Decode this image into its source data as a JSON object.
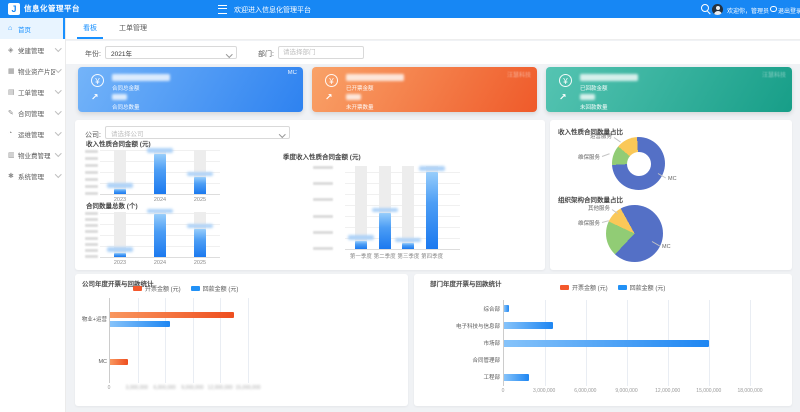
{
  "header": {
    "logo_letter": "J",
    "brand": "信息化管理平台",
    "welcome": "欢迎进入信息化管理平台",
    "greeting": "欢迎你，管理员",
    "logout": "退出登录"
  },
  "sidebar": {
    "items": [
      {
        "label": "首页",
        "icon": "home-icon",
        "active": true,
        "expandable": false
      },
      {
        "label": "党建管理",
        "icon": "flag-icon",
        "active": false,
        "expandable": true
      },
      {
        "label": "物业资产片区管理",
        "icon": "building-icon",
        "active": false,
        "expandable": true
      },
      {
        "label": "工单管理",
        "icon": "list-icon",
        "active": false,
        "expandable": true
      },
      {
        "label": "合同管理",
        "icon": "file-icon",
        "active": false,
        "expandable": true
      },
      {
        "label": "运维管理",
        "icon": "gear-icon",
        "active": false,
        "expandable": true
      },
      {
        "label": "物业费管理",
        "icon": "money-icon",
        "active": false,
        "expandable": true
      },
      {
        "label": "系统管理",
        "icon": "settings-icon",
        "active": false,
        "expandable": true
      }
    ]
  },
  "tabs": [
    {
      "label": "看板",
      "active": true
    },
    {
      "label": "工单管理",
      "active": false
    }
  ],
  "filters": {
    "year_label": "年份:",
    "year_value": "2021年",
    "dept_label": "部门:",
    "dept_placeholder": "请选择部门",
    "company_label": "公司:",
    "company_placeholder": "请选择公司"
  },
  "cards": [
    {
      "theme": "blue",
      "watermark": "MC",
      "rows": [
        {
          "label": "合同总金额",
          "value_redacted": true
        },
        {
          "label": "合同总数量",
          "value_redacted": true
        }
      ]
    },
    {
      "theme": "orange",
      "watermark": "汪慧科技",
      "rows": [
        {
          "label": "已开票金额",
          "value_redacted": true
        },
        {
          "label": "未开票数量",
          "value_redacted": true
        }
      ]
    },
    {
      "theme": "teal",
      "watermark": "汪慧科技",
      "rows": [
        {
          "label": "已回款金额",
          "value_redacted": true
        },
        {
          "label": "未回款数量",
          "value_redacted": true
        }
      ]
    }
  ],
  "colors": {
    "header": "#1787f4",
    "primary": "#1890ff",
    "bar_blue": "#1f7ff0",
    "pie_blue": "#5470c6",
    "pie_green": "#91cc75",
    "pie_yellow": "#fac858",
    "legend_orange": "#f4582c",
    "legend_blue": "#2291f6"
  },
  "chart_data": [
    {
      "id": "income_amount",
      "type": "bar",
      "title": "收入性质合同金额 (元)",
      "categories": [
        "2023",
        "2024",
        "2025"
      ],
      "values": [
        12000000,
        92000000,
        38000000
      ],
      "ylim": [
        0,
        100000000
      ],
      "y_tick_count": 7,
      "value_labels_redacted": true,
      "y_ticks_redacted": true
    },
    {
      "id": "contract_count",
      "type": "bar",
      "title": "合同数量总数 (个)",
      "categories": [
        "2023",
        "2024",
        "2025"
      ],
      "values": [
        100,
        950,
        620
      ],
      "ylim": [
        0,
        1000
      ],
      "y_tick_count": 8,
      "value_labels_redacted": true,
      "y_ticks_redacted": true
    },
    {
      "id": "quarter_amount",
      "type": "bar",
      "title": "季度收入性质合同金额 (元)",
      "categories": [
        "第一季度",
        "第二季度",
        "第三季度",
        "第四季度"
      ],
      "values": [
        15000000,
        65000000,
        10000000,
        140000000
      ],
      "ylim": [
        0,
        150000000
      ],
      "y_tick_count": 6,
      "value_labels_redacted": true,
      "y_ticks_redacted": true
    },
    {
      "id": "income_ratio",
      "type": "donut",
      "title": "收入性质合同数量占比",
      "start_angle": -50,
      "slices": [
        {
          "label": "运营服务",
          "value": 13,
          "color": "#fac858"
        },
        {
          "label": "MC",
          "value": 75,
          "color": "#5470c6"
        },
        {
          "label": "维保服务",
          "value": 12,
          "color": "#91cc75"
        }
      ]
    },
    {
      "id": "org_ratio",
      "type": "pie",
      "title": "组织架构合同数量占比",
      "start_angle": -65,
      "slices": [
        {
          "label": "其他服务",
          "value": 10,
          "color": "#fac858"
        },
        {
          "label": "MC",
          "value": 70,
          "color": "#5470c6"
        },
        {
          "label": "维保服务",
          "value": 20,
          "color": "#91cc75"
        }
      ]
    },
    {
      "id": "company_compare",
      "type": "hbar",
      "title": "公司年度开票与回款统计",
      "categories": [
        "物业+运营",
        "MC"
      ],
      "series": [
        {
          "name": "开票金额 (元)",
          "color": "#f4582c",
          "values": [
            13500000,
            2000000
          ]
        },
        {
          "name": "回款金额 (元)",
          "color": "#2291f6",
          "values": [
            6500000,
            0
          ]
        }
      ],
      "xlim": [
        0,
        15000000
      ],
      "tick_labels": [
        "0",
        "3,000,000",
        "6,000,000",
        "9,000,000",
        "12,000,000",
        "15,000,000"
      ],
      "ticks_fuzzy": true,
      "legend_position": "top"
    },
    {
      "id": "dept_compare",
      "type": "hbar",
      "title": "部门年度开票与回款统计",
      "categories": [
        "综合部",
        "电子科技与信息部",
        "市场部",
        "合同管理部",
        "工程部"
      ],
      "series": [
        {
          "name": "开票金额 (元)",
          "color": "#f4582c",
          "values": [
            0,
            0,
            0,
            0,
            0
          ]
        },
        {
          "name": "回款金额 (元)",
          "color": "#2291f6",
          "values": [
            400000,
            3600000,
            15000000,
            0,
            1800000
          ]
        }
      ],
      "xlim": [
        0,
        18000000
      ],
      "tick_labels": [
        "0",
        "3,000,000",
        "6,000,000",
        "9,000,000",
        "12,000,000",
        "15,000,000",
        "18,000,000"
      ],
      "ticks_fuzzy": false,
      "legend_position": "top"
    }
  ]
}
